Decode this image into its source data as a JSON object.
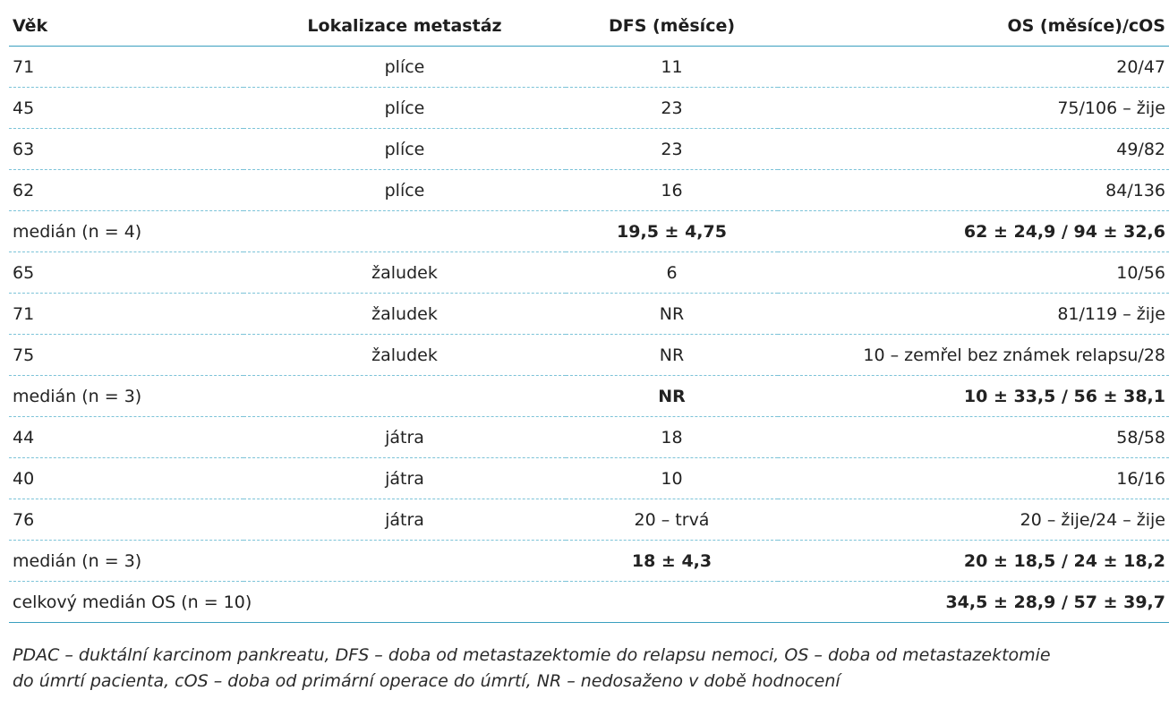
{
  "table": {
    "headers": [
      "Věk",
      "Lokalizace metastáz",
      "DFS (měsíce)",
      "OS (měsíce)/cOS"
    ],
    "rows": [
      {
        "cells": [
          "71",
          "plíce",
          "11",
          "20/47"
        ],
        "median": false
      },
      {
        "cells": [
          "45",
          "plíce",
          "23",
          "75/106 – žije"
        ],
        "median": false
      },
      {
        "cells": [
          "63",
          "plíce",
          "23",
          "49/82"
        ],
        "median": false
      },
      {
        "cells": [
          "62",
          "plíce",
          "16",
          "84/136"
        ],
        "median": false
      },
      {
        "cells": [
          "medián (n = 4)",
          "",
          "19,5 ± 4,75",
          "62 ± 24,9 / 94 ± 32,6"
        ],
        "median": true
      },
      {
        "cells": [
          "65",
          "žaludek",
          "6",
          "10/56"
        ],
        "median": false
      },
      {
        "cells": [
          "71",
          "žaludek",
          "NR",
          "81/119 – žije"
        ],
        "median": false
      },
      {
        "cells": [
          "75",
          "žaludek",
          "NR",
          "10 – zemřel bez známek relapsu/28"
        ],
        "median": false
      },
      {
        "cells": [
          "medián (n = 3)",
          "",
          "NR",
          "10 ± 33,5 / 56 ± 38,1"
        ],
        "median": true
      },
      {
        "cells": [
          "44",
          "játra",
          "18",
          "58/58"
        ],
        "median": false
      },
      {
        "cells": [
          "40",
          "játra",
          "10",
          "16/16"
        ],
        "median": false
      },
      {
        "cells": [
          "76",
          "játra",
          "20 – trvá",
          "20 – žije/24 – žije"
        ],
        "median": false
      },
      {
        "cells": [
          "medián (n = 3)",
          "",
          "18 ± 4,3",
          "20 ± 18,5 / 24 ± 18,2"
        ],
        "median": true
      },
      {
        "cells": [
          "celkový medián OS (n = 10)",
          "",
          "",
          "34,5 ± 28,9 / 57 ± 39,7"
        ],
        "median": true
      }
    ]
  },
  "footnote": {
    "line1": "PDAC – duktální karcinom pankreatu, DFS – doba od metastazektomie do relapsu nemoci, OS – doba od metastazektomie",
    "line2": "do úmrtí pacienta, cOS – doba od primární operace do úmrtí, NR – nedosaženo v době hodnocení"
  },
  "colors": {
    "rule": "#3a9fbf",
    "dashed_rule": "#7cc3d8",
    "text": "#222222"
  }
}
